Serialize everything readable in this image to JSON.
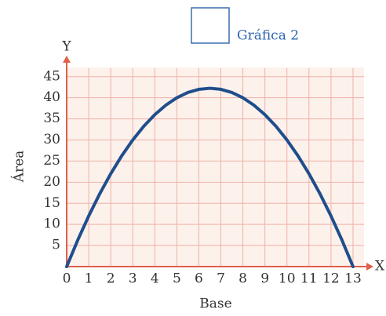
{
  "chart_data": {
    "type": "line",
    "x_label": "Base",
    "y_label": "Área",
    "x_axis_name": "X",
    "y_axis_name": "Y",
    "x": [
      0,
      0.5,
      1,
      1.5,
      2,
      2.5,
      3,
      3.5,
      4,
      4.5,
      5,
      5.5,
      6,
      6.5,
      7,
      7.5,
      8,
      8.5,
      9,
      9.5,
      10,
      10.5,
      11,
      11.5,
      12,
      12.5,
      13
    ],
    "series": [
      {
        "name": "Gráfica 2",
        "color": "#1f4e8c",
        "values": [
          0,
          6.25,
          12,
          17.25,
          22,
          26.25,
          30,
          33.25,
          36,
          38.25,
          40,
          41.25,
          42,
          42.25,
          42,
          41.25,
          40,
          38.25,
          36,
          33.25,
          30,
          26.25,
          22,
          17.25,
          12,
          6.25,
          0
        ]
      }
    ],
    "xlim": [
      0,
      13.5
    ],
    "ylim": [
      0,
      47
    ],
    "xticks": [
      0,
      1,
      2,
      3,
      4,
      5,
      6,
      7,
      8,
      9,
      10,
      11,
      12,
      13
    ],
    "yticks": [
      5,
      10,
      15,
      20,
      25,
      30,
      35,
      40,
      45
    ],
    "grid": true,
    "legend": "top"
  }
}
